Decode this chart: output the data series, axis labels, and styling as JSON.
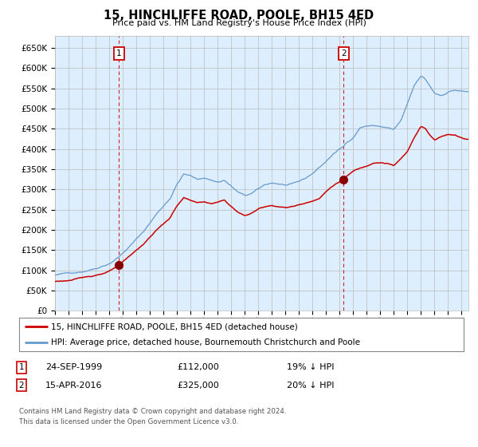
{
  "title": "15, HINCHLIFFE ROAD, POOLE, BH15 4ED",
  "subtitle": "Price paid vs. HM Land Registry's House Price Index (HPI)",
  "legend_line1": "15, HINCHLIFFE ROAD, POOLE, BH15 4ED (detached house)",
  "legend_line2": "HPI: Average price, detached house, Bournemouth Christchurch and Poole",
  "footer1": "Contains HM Land Registry data © Crown copyright and database right 2024.",
  "footer2": "This data is licensed under the Open Government Licence v3.0.",
  "transaction1_date": "24-SEP-1999",
  "transaction1_price": "£112,000",
  "transaction1_pct": "19% ↓ HPI",
  "transaction2_date": "15-APR-2016",
  "transaction2_price": "£325,000",
  "transaction2_pct": "20% ↓ HPI",
  "red_color": "#cc0000",
  "blue_color": "#6699cc",
  "bg_color": "#ddeeff",
  "grid_color": "#bbbbbb",
  "marker_color": "#880000",
  "dashed_line_color": "#cc2222",
  "box_edge_color": "#cc0000",
  "legend_edge_color": "#888888",
  "ylim": [
    0,
    680000
  ],
  "yticks": [
    0,
    50000,
    100000,
    150000,
    200000,
    250000,
    300000,
    350000,
    400000,
    450000,
    500000,
    550000,
    600000,
    650000
  ],
  "xstart_year": 1995.0,
  "xend_year": 2025.5,
  "transaction1_x": 1999.73,
  "transaction2_x": 2016.29,
  "hpi_anchors_x": [
    1995.0,
    1996.0,
    1997.0,
    1998.0,
    1999.0,
    1999.73,
    2000.5,
    2001.5,
    2002.5,
    2003.5,
    2004.0,
    2004.5,
    2005.0,
    2005.5,
    2006.0,
    2007.0,
    2007.5,
    2008.0,
    2008.5,
    2009.0,
    2009.5,
    2010.0,
    2010.5,
    2011.0,
    2011.5,
    2012.0,
    2012.5,
    2013.0,
    2013.5,
    2014.0,
    2014.5,
    2015.0,
    2015.5,
    2016.0,
    2016.29,
    2016.5,
    2017.0,
    2017.5,
    2018.0,
    2018.5,
    2019.0,
    2019.5,
    2020.0,
    2020.5,
    2021.0,
    2021.5,
    2022.0,
    2022.3,
    2022.7,
    2023.0,
    2023.5,
    2024.0,
    2024.5,
    2025.3
  ],
  "hpi_anchors_y": [
    88000,
    92000,
    98000,
    108000,
    122000,
    140000,
    165000,
    200000,
    245000,
    285000,
    320000,
    345000,
    340000,
    330000,
    335000,
    325000,
    330000,
    315000,
    300000,
    290000,
    295000,
    305000,
    315000,
    320000,
    318000,
    315000,
    315000,
    320000,
    328000,
    340000,
    355000,
    370000,
    388000,
    400000,
    406000,
    415000,
    430000,
    455000,
    460000,
    460000,
    458000,
    455000,
    450000,
    470000,
    510000,
    555000,
    578000,
    570000,
    550000,
    535000,
    530000,
    540000,
    545000,
    540000
  ],
  "red_anchors_x": [
    1995.0,
    1996.0,
    1997.0,
    1998.0,
    1999.0,
    1999.73,
    2000.5,
    2001.5,
    2002.5,
    2003.5,
    2004.0,
    2004.5,
    2005.0,
    2005.5,
    2006.0,
    2006.5,
    2007.0,
    2007.5,
    2008.0,
    2008.5,
    2009.0,
    2009.5,
    2010.0,
    2010.5,
    2011.0,
    2011.5,
    2012.0,
    2012.5,
    2013.0,
    2013.5,
    2014.0,
    2014.5,
    2015.0,
    2015.5,
    2016.0,
    2016.29,
    2016.5,
    2017.0,
    2017.5,
    2018.0,
    2018.5,
    2019.0,
    2019.5,
    2020.0,
    2020.5,
    2021.0,
    2021.5,
    2022.0,
    2022.3,
    2022.6,
    2023.0,
    2023.5,
    2024.0,
    2024.5,
    2025.3
  ],
  "red_anchors_y": [
    72000,
    75000,
    80000,
    88000,
    98000,
    112000,
    132000,
    162000,
    198000,
    228000,
    258000,
    278000,
    272000,
    265000,
    268000,
    262000,
    265000,
    270000,
    255000,
    240000,
    232000,
    238000,
    248000,
    255000,
    258000,
    256000,
    253000,
    256000,
    260000,
    265000,
    272000,
    278000,
    295000,
    310000,
    320000,
    325000,
    332000,
    345000,
    352000,
    358000,
    368000,
    370000,
    368000,
    362000,
    378000,
    395000,
    430000,
    460000,
    455000,
    440000,
    425000,
    435000,
    440000,
    440000,
    430000
  ]
}
